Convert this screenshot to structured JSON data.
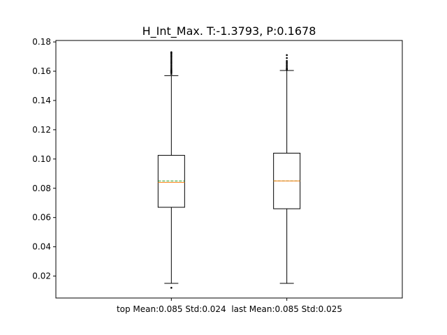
{
  "chart_data": {
    "type": "box",
    "title": "H_Int_Max. T:-1.3793, P:0.1678",
    "xlabel": "",
    "ylabel": "",
    "ylim": [
      0.005,
      0.181
    ],
    "yticks": [
      0.02,
      0.04,
      0.06,
      0.08,
      0.1,
      0.12,
      0.14,
      0.16,
      0.18
    ],
    "ytick_labels": [
      "0.02",
      "0.04",
      "0.06",
      "0.08",
      "0.10",
      "0.12",
      "0.14",
      "0.16",
      "0.18"
    ],
    "grid": false,
    "show_means": true,
    "mean_line_style": "dashed",
    "colors": {
      "median": "#ff7f0e",
      "mean": "#2ca02c",
      "box": "#000000"
    },
    "categories": [
      "top Mean:0.085 Std:0.024",
      "last Mean:0.085 Std:0.025"
    ],
    "boxes": [
      {
        "label": "top Mean:0.085 Std:0.024",
        "whisker_low": 0.015,
        "q1": 0.067,
        "median": 0.084,
        "mean": 0.085,
        "q3": 0.1025,
        "whisker_high": 0.157,
        "outliers_high": [
          0.158,
          0.159,
          0.1595,
          0.16,
          0.1605,
          0.161,
          0.162,
          0.163,
          0.164,
          0.165,
          0.166,
          0.167,
          0.168,
          0.169,
          0.17,
          0.171,
          0.172,
          0.1725,
          0.173
        ],
        "outliers_low": [
          0.012
        ]
      },
      {
        "label": "last Mean:0.085 Std:0.025",
        "whisker_low": 0.015,
        "q1": 0.066,
        "median": 0.085,
        "mean": 0.085,
        "q3": 0.104,
        "whisker_high": 0.1605,
        "outliers_high": [
          0.161,
          0.1615,
          0.162,
          0.163,
          0.164,
          0.165,
          0.166,
          0.167,
          0.169,
          0.171
        ],
        "outliers_low": []
      }
    ]
  }
}
